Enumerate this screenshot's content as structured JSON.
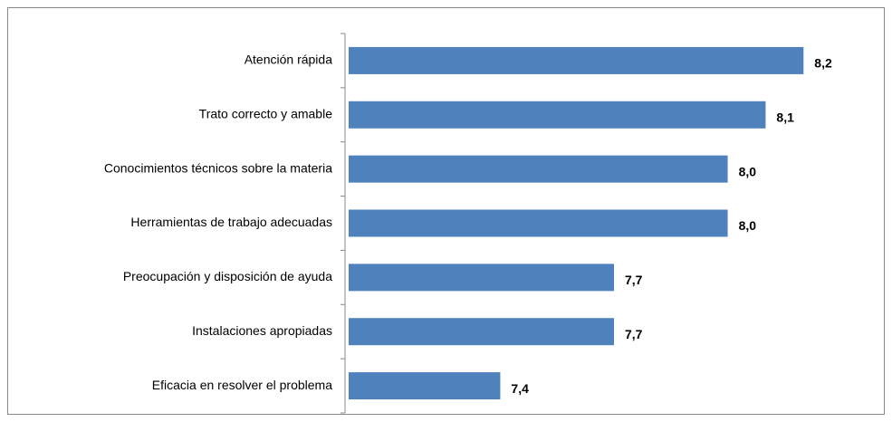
{
  "chart_data": {
    "type": "bar",
    "orientation": "horizontal",
    "categories": [
      "Atención rápida",
      "Trato correcto y amable",
      "Conocimientos técnicos sobre la materia",
      "Herramientas de trabajo adecuadas",
      "Preocupación y disposición de ayuda",
      "Instalaciones apropiadas",
      "Eficacia en resolver el problema"
    ],
    "values": [
      8.2,
      8.1,
      8.0,
      8.0,
      7.7,
      7.7,
      7.4
    ],
    "value_labels": [
      "8,2",
      "8,1",
      "8,0",
      "8,0",
      "7,7",
      "7,7",
      "7,4"
    ],
    "color": "#4f81bd",
    "xlim": [
      7,
      8.4
    ]
  }
}
